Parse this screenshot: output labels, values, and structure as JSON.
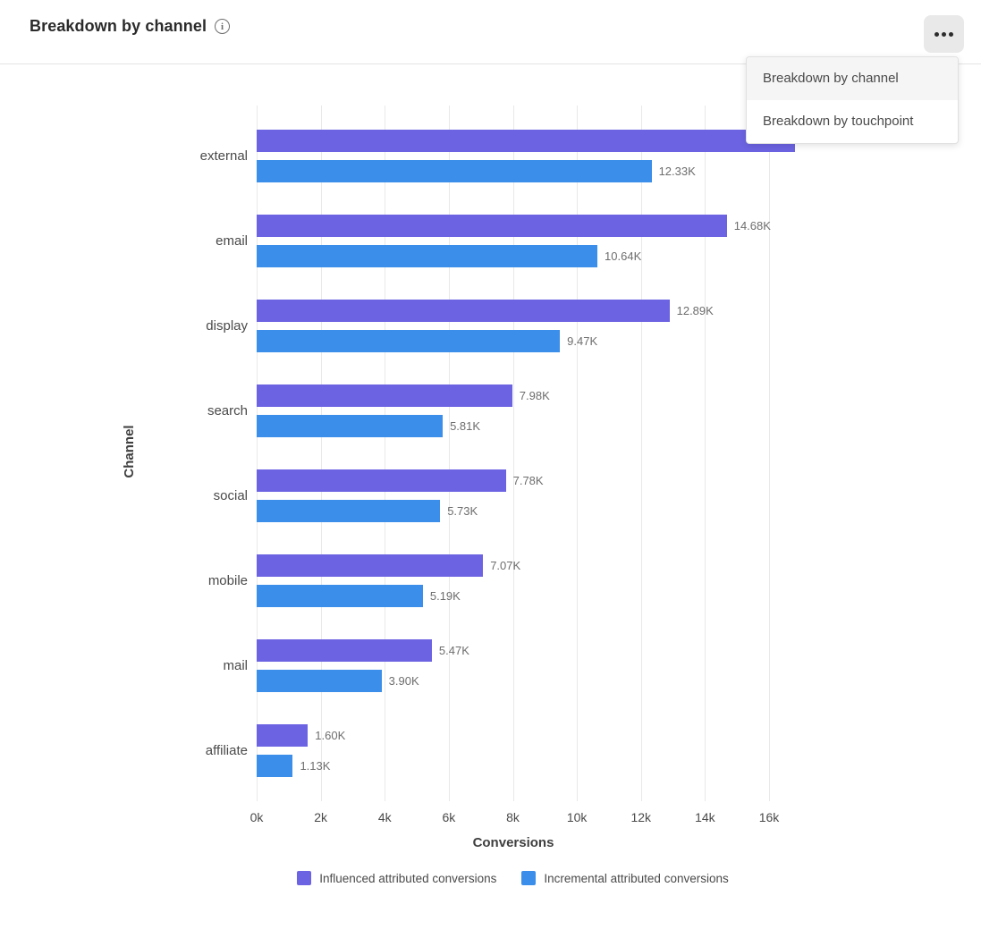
{
  "header": {
    "title": "Breakdown by channel",
    "info_icon_glyph": "i"
  },
  "menu": {
    "items": [
      {
        "label": "Breakdown by channel",
        "selected": true
      },
      {
        "label": "Breakdown by touchpoint",
        "selected": false
      }
    ]
  },
  "chart_data": {
    "type": "bar",
    "orientation": "horizontal",
    "title": "Breakdown by channel",
    "xlabel": "Conversions",
    "ylabel": "Channel",
    "xlim": [
      0,
      16000
    ],
    "x_ticks": [
      "0k",
      "2k",
      "4k",
      "6k",
      "8k",
      "10k",
      "12k",
      "14k",
      "16k"
    ],
    "grid": "vertical",
    "legend_position": "bottom",
    "categories": [
      "external",
      "email",
      "display",
      "search",
      "social",
      "mobile",
      "mail",
      "affiliate"
    ],
    "series": [
      {
        "name": "Influenced attributed conversions",
        "color": "#6C63E2",
        "values": [
          16800,
          14680,
          12890,
          7980,
          7780,
          7070,
          5470,
          1600
        ],
        "labels": [
          "",
          "14.68K",
          "12.89K",
          "7.98K",
          "7.78K",
          "7.07K",
          "5.47K",
          "1.60K"
        ]
      },
      {
        "name": "Incremental attributed conversions",
        "color": "#3B8EE9",
        "values": [
          12330,
          10640,
          9470,
          5810,
          5730,
          5190,
          3900,
          1130
        ],
        "labels": [
          "12.33K",
          "10.64K",
          "9.47K",
          "5.81K",
          "5.73K",
          "5.19K",
          "3.90K",
          "1.13K"
        ]
      }
    ]
  }
}
